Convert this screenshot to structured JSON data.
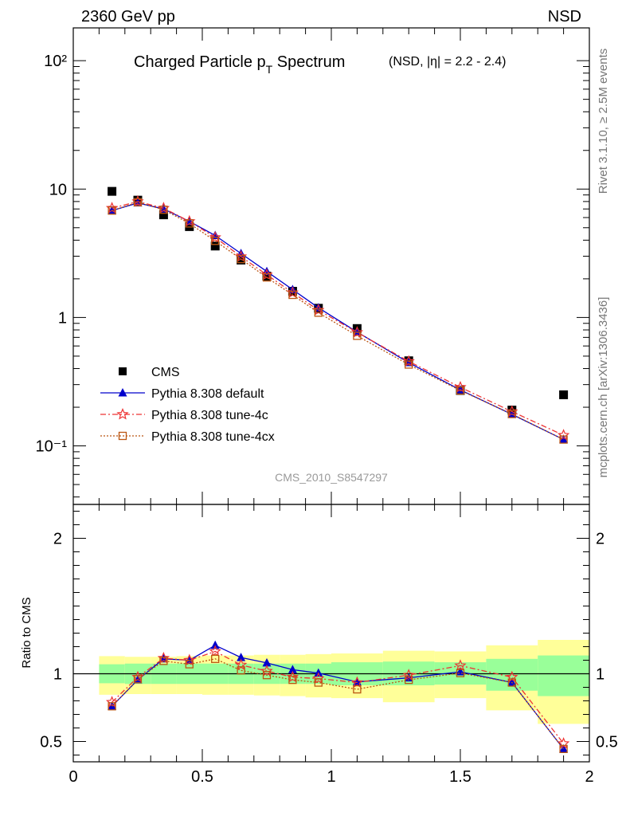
{
  "header": {
    "energy_label": "2360 GeV pp",
    "process_label": "NSD"
  },
  "side_text": {
    "rivet": "Rivet 3.1.10, ≥ 2.5M events",
    "mcplots": "mcplots.cern.ch [arXiv:1306.3436]"
  },
  "chart_data": [
    {
      "type": "scatter",
      "title": "Charged Particle p",
      "title_sub": "T",
      "title_rest": " Spectrum",
      "title_note": "(NSD, |η| = 2.2 - 2.4)",
      "watermark": "CMS_2010_S8547297",
      "xlim": [
        0,
        2
      ],
      "ylim": [
        0.035,
        180
      ],
      "yscale": "log",
      "ytick_labels": [
        "10⁻¹",
        "1",
        "10",
        "10²"
      ],
      "ytick_values": [
        0.1,
        1,
        10,
        100
      ],
      "legend_position": "bottom-left",
      "x": [
        0.15,
        0.25,
        0.35,
        0.45,
        0.55,
        0.65,
        0.75,
        0.85,
        0.95,
        1.1,
        1.3,
        1.5,
        1.7,
        1.9
      ],
      "series": [
        {
          "name": "CMS",
          "color": "#000000",
          "marker": "square",
          "values": [
            9.6,
            8.2,
            6.3,
            5.1,
            3.6,
            2.8,
            2.1,
            1.6,
            1.18,
            0.82,
            0.46,
            0.27,
            0.19,
            0.25
          ]
        },
        {
          "name": "Pythia 8.308 default",
          "color": "#0000cc",
          "marker": "triangle",
          "line": "solid",
          "values": [
            6.8,
            7.8,
            7.0,
            5.6,
            4.35,
            3.15,
            2.28,
            1.65,
            1.19,
            0.77,
            0.445,
            0.273,
            0.176,
            0.112
          ]
        },
        {
          "name": "Pythia 8.308 tune-4c",
          "color": "#ee3333",
          "marker": "star",
          "line": "dashdot",
          "values": [
            7.1,
            8.0,
            7.1,
            5.6,
            4.2,
            2.98,
            2.15,
            1.56,
            1.14,
            0.765,
            0.455,
            0.286,
            0.185,
            0.121
          ]
        },
        {
          "name": "Pythia 8.308 tune-4cx",
          "color": "#bb5511",
          "marker": "open-square",
          "line": "dotted",
          "values": [
            6.8,
            7.9,
            6.9,
            5.4,
            3.95,
            2.85,
            2.05,
            1.5,
            1.09,
            0.72,
            0.43,
            0.27,
            0.177,
            0.112
          ]
        }
      ]
    },
    {
      "type": "line",
      "ylabel": "Ratio to CMS",
      "xlim": [
        0,
        2
      ],
      "ylim": [
        0.35,
        2.25
      ],
      "ytick_values": [
        0.5,
        1,
        2
      ],
      "ytick_labels": [
        "0.5",
        "1",
        "2"
      ],
      "xtick_values": [
        0,
        0.5,
        1,
        1.5,
        2
      ],
      "xtick_labels": [
        "0",
        "0.5",
        "1",
        "1.5",
        "2"
      ],
      "reference_line": 1,
      "uncertainty_bands": {
        "edges": [
          0.1,
          0.2,
          0.3,
          0.4,
          0.5,
          0.6,
          0.7,
          0.8,
          0.9,
          1.0,
          1.2,
          1.4,
          1.6,
          1.8,
          2.0
        ],
        "stat_low": [
          0.93,
          0.925,
          0.925,
          0.925,
          0.925,
          0.925,
          0.925,
          0.925,
          0.925,
          0.915,
          0.915,
          0.92,
          0.875,
          0.835
        ],
        "stat_high": [
          1.07,
          1.075,
          1.075,
          1.075,
          1.075,
          1.075,
          1.075,
          1.075,
          1.075,
          1.085,
          1.09,
          1.085,
          1.11,
          1.135
        ],
        "syst_low": [
          0.845,
          0.85,
          0.85,
          0.85,
          0.845,
          0.845,
          0.84,
          0.835,
          0.825,
          0.82,
          0.79,
          0.82,
          0.73,
          0.63
        ],
        "syst_high": [
          1.13,
          1.125,
          1.125,
          1.13,
          1.135,
          1.135,
          1.14,
          1.14,
          1.145,
          1.15,
          1.17,
          1.165,
          1.21,
          1.25
        ],
        "stat_color": "#99ff99",
        "syst_color": "#ffff99"
      },
      "x": [
        0.15,
        0.25,
        0.35,
        0.45,
        0.55,
        0.65,
        0.75,
        0.85,
        0.95,
        1.1,
        1.3,
        1.5,
        1.7,
        1.9
      ],
      "series": [
        {
          "name": "Pythia 8.308 default",
          "color": "#0000cc",
          "marker": "triangle",
          "line": "solid",
          "values": [
            0.76,
            0.955,
            1.11,
            1.1,
            1.21,
            1.12,
            1.08,
            1.03,
            1.005,
            0.94,
            0.97,
            1.015,
            0.935,
            0.445
          ]
        },
        {
          "name": "Pythia 8.308 tune-4c",
          "color": "#ee3333",
          "marker": "star",
          "line": "dashdot",
          "values": [
            0.79,
            0.975,
            1.115,
            1.1,
            1.165,
            1.065,
            1.02,
            0.975,
            0.965,
            0.935,
            0.99,
            1.06,
            0.975,
            0.485
          ]
        },
        {
          "name": "Pythia 8.308 tune-4cx",
          "color": "#bb5511",
          "marker": "open-square",
          "line": "dotted",
          "values": [
            0.76,
            0.96,
            1.095,
            1.07,
            1.11,
            1.025,
            0.99,
            0.955,
            0.935,
            0.885,
            0.955,
            1.005,
            0.935,
            0.445
          ]
        }
      ]
    }
  ]
}
